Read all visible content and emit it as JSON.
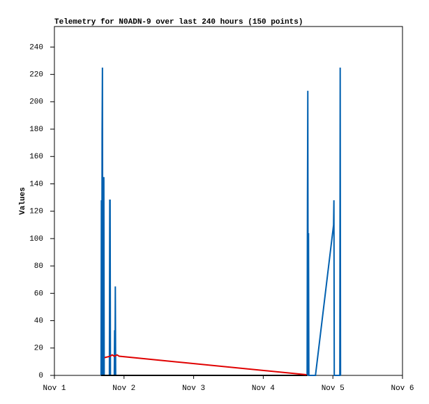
{
  "chart_data": {
    "type": "line",
    "title": "Telemetry for N0ADN-9 over last 240 hours (150 points)",
    "y_label": "Values",
    "xlim": [
      0,
      5
    ],
    "ylim": [
      0,
      255
    ],
    "xticks": [
      {
        "value": 0,
        "label": "Nov 1"
      },
      {
        "value": 1,
        "label": "Nov 2"
      },
      {
        "value": 2,
        "label": "Nov 3"
      },
      {
        "value": 3,
        "label": "Nov 4"
      },
      {
        "value": 4,
        "label": "Nov 5"
      },
      {
        "value": 5,
        "label": "Nov 6"
      }
    ],
    "yticks": [
      0,
      20,
      40,
      60,
      80,
      100,
      120,
      140,
      160,
      180,
      200,
      220,
      240
    ],
    "series": [
      {
        "color": "#0060b0",
        "x": [
          0.67,
          0.675,
          0.68,
          0.685,
          0.69,
          0.695,
          0.71,
          0.715,
          0.79,
          0.795,
          0.8,
          0.805,
          0.86,
          0.865,
          0.87,
          0.875,
          0.88,
          0.9,
          3.63,
          3.635,
          3.64,
          3.645,
          3.65,
          3.655,
          3.75,
          4.01,
          4.015,
          4.02,
          4.1,
          4.105,
          4.11
        ],
        "values": [
          0,
          128,
          0,
          177,
          225,
          0,
          145,
          0,
          0,
          128,
          128,
          0,
          0,
          33,
          0,
          65,
          0,
          null,
          0,
          128,
          208,
          0,
          104,
          0,
          0,
          110,
          128,
          0,
          0,
          225,
          0
        ]
      },
      {
        "color": "#000000",
        "x": [
          0.67,
          3.63
        ],
        "values": [
          0,
          0
        ]
      },
      {
        "color": "#e00000",
        "x": [
          0.72,
          0.8,
          0.83,
          0.86,
          0.9,
          0.93,
          3.62
        ],
        "values": [
          13,
          14,
          15,
          14,
          15,
          14,
          0.5
        ]
      }
    ]
  }
}
